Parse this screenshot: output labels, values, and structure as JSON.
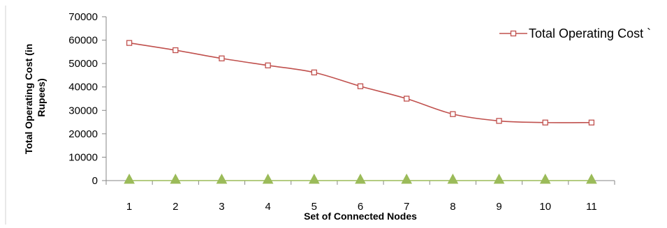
{
  "chart_data": {
    "type": "line",
    "xlabel": "Set of Connected Nodes",
    "ylabel_lines": [
      "Total Operating Cost (in",
      "Rupees)"
    ],
    "categories": [
      "1",
      "2",
      "3",
      "4",
      "5",
      "6",
      "7",
      "8",
      "9",
      "10",
      "11"
    ],
    "ylim": [
      0,
      70000
    ],
    "yticks": [
      0,
      10000,
      20000,
      30000,
      40000,
      50000,
      60000,
      70000
    ],
    "ytick_labels": [
      "0",
      "10000",
      "20000",
      "30000",
      "40000",
      "50000",
      "60000",
      "70000"
    ],
    "grid": false,
    "legend_position": "top-right",
    "series": [
      {
        "name": "Total Operating Cost `",
        "values": [
          58800,
          55700,
          52200,
          49200,
          46200,
          40300,
          35000,
          28400,
          25500,
          24800,
          24800
        ],
        "color": "#C0504D",
        "marker": "square"
      },
      {
        "values": [
          0,
          0,
          0,
          0,
          0,
          0,
          0,
          0,
          0,
          0,
          0
        ],
        "color": "#9BBB59",
        "marker": "triangle"
      }
    ]
  }
}
